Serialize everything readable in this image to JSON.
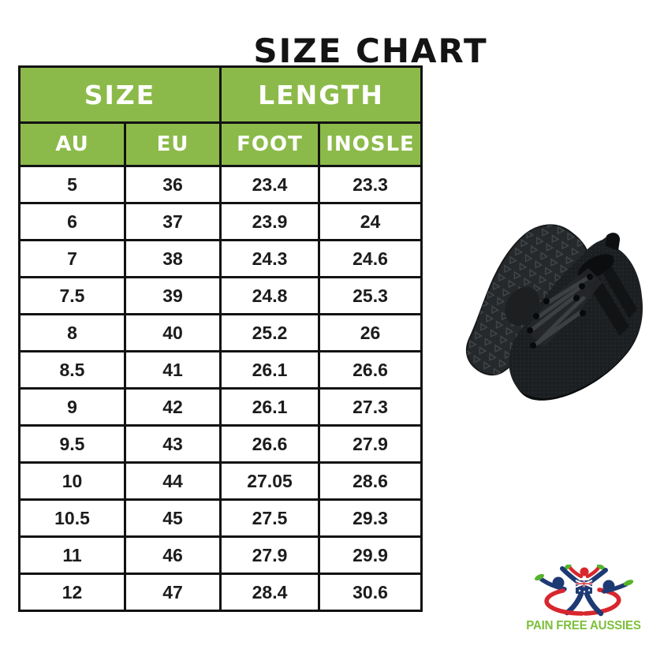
{
  "title": "SIZE CHART",
  "chart_data": {
    "type": "table",
    "title": "SIZE CHART",
    "column_groups": [
      {
        "label": "SIZE",
        "colspan": 2
      },
      {
        "label": "LENGTH",
        "colspan": 2
      }
    ],
    "columns": [
      "AU",
      "EU",
      "FOOT",
      "INOSLE"
    ],
    "rows": [
      [
        5,
        36,
        23.4,
        23.3
      ],
      [
        6,
        37,
        23.9,
        24
      ],
      [
        7,
        38,
        24.3,
        24.6
      ],
      [
        7.5,
        39,
        24.8,
        25.3
      ],
      [
        8,
        40,
        25.2,
        26
      ],
      [
        8.5,
        41,
        26.1,
        26.6
      ],
      [
        9,
        42,
        26.1,
        27.3
      ],
      [
        9.5,
        43,
        26.6,
        27.9
      ],
      [
        10,
        44,
        27.05,
        28.6
      ],
      [
        10.5,
        45,
        27.5,
        29.3
      ],
      [
        11,
        46,
        27.9,
        29.9
      ],
      [
        12,
        47,
        28.4,
        30.6
      ]
    ]
  },
  "colors": {
    "title_text": "#141414",
    "header_bg": "#8cba4a",
    "header_text": "#ffffff",
    "table_border": "#121212",
    "cell_text": "#1c1c1c",
    "logo_text": "#7cbf3b",
    "logo_navy": "#1e3a74",
    "logo_red": "#d8262d",
    "logo_leaf": "#56b32c"
  },
  "product_image": {
    "icon": "black-sneakers-photo"
  },
  "logo": {
    "text": "PAIN FREE AUSSIES"
  }
}
